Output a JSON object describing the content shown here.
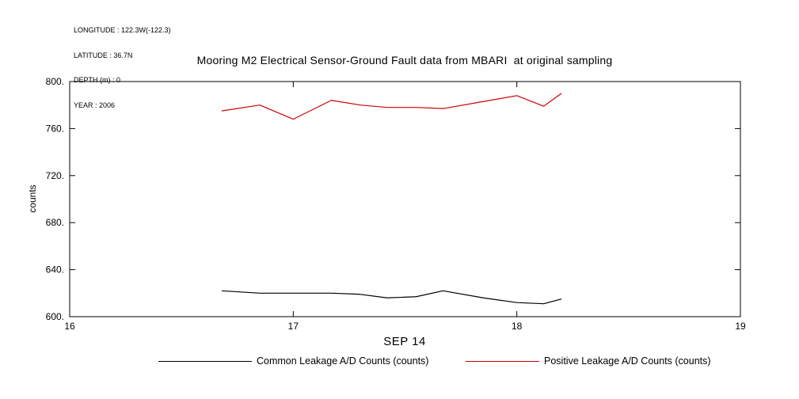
{
  "meta": {
    "longitude": "LONGITUDE : 122.3W(-122.3)",
    "latitude": "LATITUDE : 36.7N",
    "depth": "DEPTH (m) : 0",
    "year": "YEAR : 2006"
  },
  "title": "Mooring M2 Electrical Sensor-Ground Fault data from MBARI  at original sampling",
  "chart_data": {
    "type": "line",
    "title": "Mooring M2 Electrical Sensor-Ground Fault data from MBARI  at original sampling",
    "xlabel": "SEP 14",
    "ylabel": "counts",
    "xlim": [
      16,
      19
    ],
    "ylim": [
      600,
      800
    ],
    "grid": false,
    "legend_position": "bottom",
    "x_ticks": [
      {
        "v": 16,
        "label": "16"
      },
      {
        "v": 17,
        "label": "17"
      },
      {
        "v": 18,
        "label": "18"
      },
      {
        "v": 19,
        "label": "19"
      }
    ],
    "y_ticks": [
      {
        "v": 800,
        "label": "800."
      },
      {
        "v": 760,
        "label": "760."
      },
      {
        "v": 720,
        "label": "720."
      },
      {
        "v": 680,
        "label": "680."
      },
      {
        "v": 640,
        "label": "640."
      },
      {
        "v": 600,
        "label": "600."
      }
    ],
    "x": [
      16.68,
      16.85,
      17.0,
      17.17,
      17.3,
      17.42,
      17.55,
      17.67,
      17.85,
      18.0,
      18.12,
      18.2
    ],
    "series": [
      {
        "name": "Common Leakage A/D Counts (counts)",
        "color": "#000000",
        "values": [
          622,
          620,
          620,
          620,
          619,
          616,
          617,
          622,
          616,
          612,
          611,
          615
        ]
      },
      {
        "name": "Positive Leakage A/D Counts (counts)",
        "color": "#cc0000",
        "values": [
          775,
          780,
          768,
          784,
          780,
          778,
          778,
          777,
          783,
          788,
          779,
          790
        ]
      }
    ]
  }
}
